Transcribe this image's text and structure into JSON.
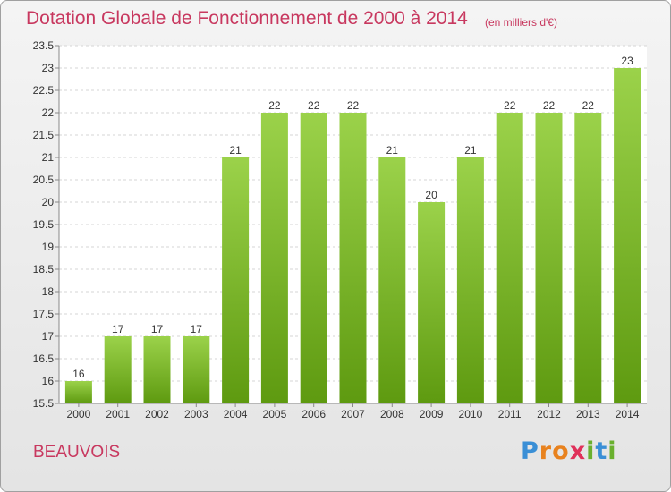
{
  "header": {
    "title": "Dotation Globale de Fonctionnement de 2000 à 2014",
    "unit": "(en milliers d'€)"
  },
  "footer": {
    "commune": "BEAUVOIS",
    "logo": {
      "letters": [
        "P",
        "r",
        "o",
        "x",
        "i",
        "t",
        "i"
      ],
      "colors": [
        "#3a8fd6",
        "#e8821e",
        "#e8821e",
        "#e0305a",
        "#6ab02e",
        "#3a8fd6",
        "#6ab02e"
      ]
    }
  },
  "chart_data": {
    "type": "bar",
    "title": "Dotation Globale de Fonctionnement de 2000 à 2014",
    "subtitle": "(en milliers d'€)",
    "xlabel": "",
    "ylabel": "",
    "categories": [
      "2000",
      "2001",
      "2002",
      "2003",
      "2004",
      "2005",
      "2006",
      "2007",
      "2008",
      "2009",
      "2010",
      "2011",
      "2012",
      "2013",
      "2014"
    ],
    "values": [
      16,
      17,
      17,
      17,
      21,
      22,
      22,
      22,
      21,
      20,
      21,
      22,
      22,
      22,
      23
    ],
    "data_labels": [
      "16",
      "17",
      "17",
      "17",
      "21",
      "22",
      "22",
      "22",
      "21",
      "20",
      "21",
      "22",
      "22",
      "22",
      "23"
    ],
    "ylim": [
      15.5,
      23.5
    ],
    "yticks": [
      15.5,
      16,
      16.5,
      17,
      17.5,
      18,
      18.5,
      19,
      19.5,
      20,
      20.5,
      21,
      21.5,
      22,
      22.5,
      23,
      23.5
    ],
    "ytick_labels": [
      "15.5",
      "16",
      "16.5",
      "17",
      "17.5",
      "18",
      "18.5",
      "19",
      "19.5",
      "20",
      "20.5",
      "21",
      "21.5",
      "22",
      "22.5",
      "23",
      "23.5"
    ],
    "grid": true,
    "bar_color": "#8cc63f",
    "bar_color_dark": "#5e9a10"
  }
}
